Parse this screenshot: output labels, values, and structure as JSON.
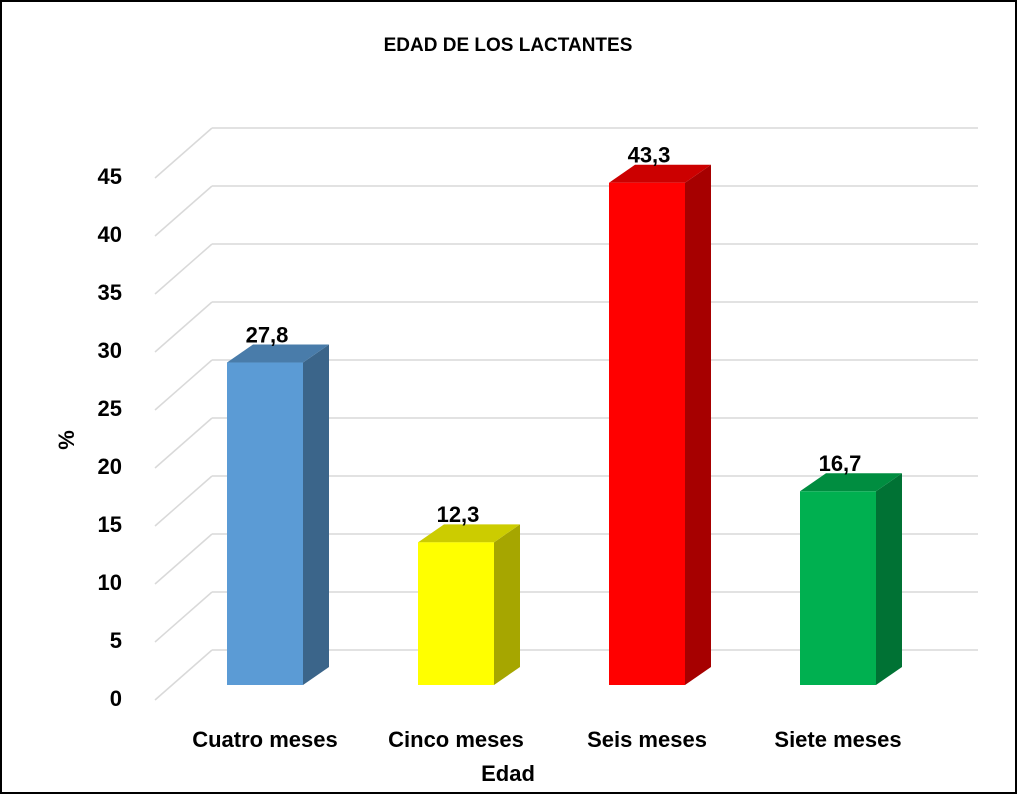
{
  "chart_data": {
    "type": "bar3d",
    "title": "EDAD DE LOS LACTANTES",
    "x_label": "Edad",
    "y_label": "%",
    "categories": [
      "Cuatro meses",
      "Cinco meses",
      "Seis meses",
      "Siete meses"
    ],
    "values": [
      27.8,
      12.3,
      43.3,
      16.7
    ],
    "value_labels": [
      "27,8",
      "12,3",
      "43,3",
      "16,7"
    ],
    "colors": [
      "#5b9bd5",
      "#ffff00",
      "#ff0000",
      "#00b050"
    ],
    "ylim": [
      0,
      45
    ],
    "yticks": [
      0,
      5,
      10,
      15,
      20,
      25,
      30,
      35,
      40,
      45
    ],
    "grid": true
  }
}
